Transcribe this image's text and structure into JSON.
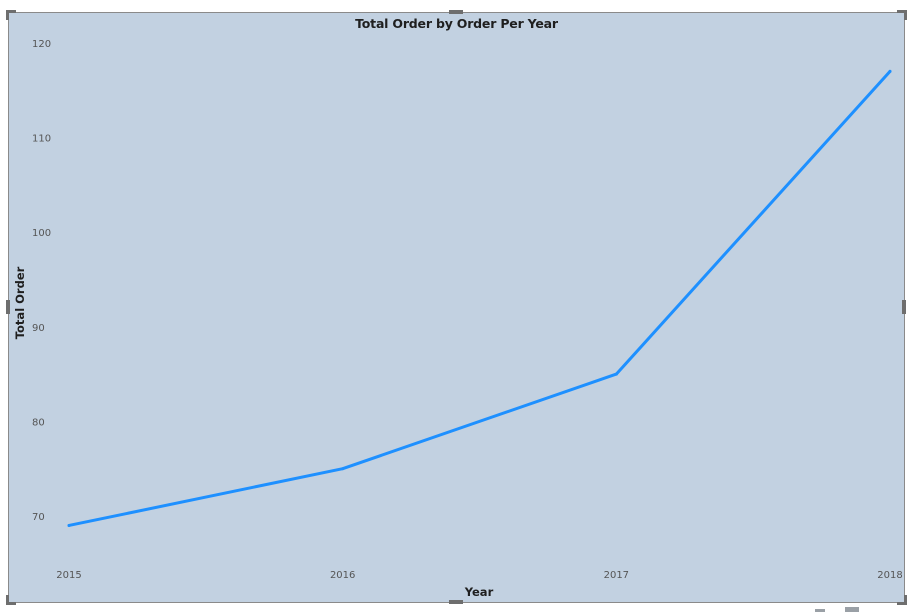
{
  "chart_data": {
    "type": "line",
    "title": "Total Order by Order Per Year",
    "xlabel": "Year",
    "ylabel": "Total Order",
    "categories": [
      "2015",
      "2016",
      "2017",
      "2018"
    ],
    "x": [
      2015,
      2016,
      2017,
      2018
    ],
    "y_ticks": [
      70,
      80,
      90,
      100,
      110,
      120
    ],
    "ylim": [
      65,
      122
    ],
    "grid": false,
    "series": [
      {
        "values": [
          69,
          75,
          85,
          117
        ],
        "color": "#1e90ff"
      }
    ]
  },
  "colors": {
    "plot_background": "#c2d1e1",
    "line": "#1e90ff",
    "handle": "#6e6e6e"
  }
}
